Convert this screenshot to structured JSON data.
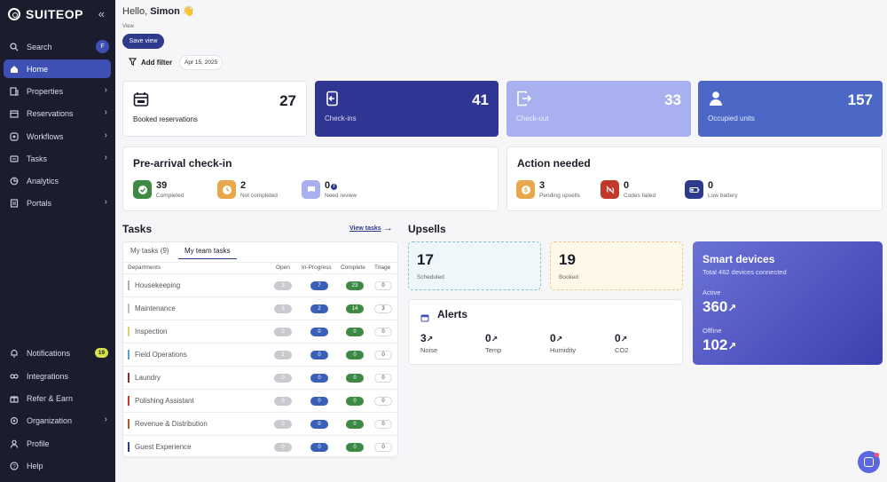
{
  "brand": {
    "name": "SUITEOP"
  },
  "sidebar": {
    "items": [
      {
        "label": "Search",
        "icon": "search-icon",
        "badge": "F"
      },
      {
        "label": "Home",
        "icon": "home-icon",
        "active": true
      },
      {
        "label": "Properties",
        "icon": "building-icon",
        "chevron": true
      },
      {
        "label": "Reservations",
        "icon": "calendar-icon",
        "chevron": true
      },
      {
        "label": "Workflows",
        "icon": "workflow-icon",
        "chevron": true
      },
      {
        "label": "Tasks",
        "icon": "tasks-icon",
        "chevron": true
      },
      {
        "label": "Analytics",
        "icon": "analytics-icon"
      },
      {
        "label": "Portals",
        "icon": "portal-icon",
        "chevron": true
      }
    ],
    "bottom_items": [
      {
        "label": "Notifications",
        "icon": "bell-icon",
        "badge": "19"
      },
      {
        "label": "Integrations",
        "icon": "integrations-icon"
      },
      {
        "label": "Refer & Earn",
        "icon": "gift-icon"
      },
      {
        "label": "Organization",
        "icon": "organization-icon",
        "chevron": true
      },
      {
        "label": "Profile",
        "icon": "user-icon"
      },
      {
        "label": "Help",
        "icon": "help-icon"
      }
    ]
  },
  "header": {
    "greeting_prefix": "Hello,",
    "user_name": "Simon",
    "wave": "👋",
    "view_label": "View",
    "save_view": "Save view",
    "add_filter": "Add filter",
    "date": "Apr 15, 2025"
  },
  "stats": [
    {
      "label": "Booked reservations",
      "value": "27",
      "icon": "calendar-icon"
    },
    {
      "label": "Check-ins",
      "value": "41",
      "icon": "check-in-icon"
    },
    {
      "label": "Check-out",
      "value": "33",
      "icon": "check-out-icon"
    },
    {
      "label": "Occupied units",
      "value": "157",
      "icon": "person-icon"
    }
  ],
  "pre_arrival": {
    "title": "Pre-arrival check-in",
    "metrics": [
      {
        "value": "39",
        "label": "Completed",
        "color": "#3e8a45"
      },
      {
        "value": "2",
        "label": "Not completed",
        "color": "#e7a74a"
      },
      {
        "value": "0",
        "label": "Need review",
        "color": "#a9b0f0"
      }
    ]
  },
  "action_needed": {
    "title": "Action needed",
    "metrics": [
      {
        "value": "3",
        "label": "Pending upsells",
        "color": "#e7a74a"
      },
      {
        "value": "0",
        "label": "Codes failed",
        "color": "#c0392b"
      },
      {
        "value": "0",
        "label": "Low battery",
        "color": "#2e3a8c"
      }
    ]
  },
  "tasks": {
    "title": "Tasks",
    "view_tasks": "View tasks",
    "tabs": [
      "My tasks (9)",
      "My team tasks"
    ],
    "columns": [
      "Departments",
      "Open",
      "In-Progress",
      "Complete",
      "Triage"
    ],
    "rows": [
      {
        "dept": "Housekeeping",
        "open": "3",
        "progress": "7",
        "complete": "23",
        "triage": "0",
        "color": "#b0b0b8"
      },
      {
        "dept": "Maintenance",
        "open": "3",
        "progress": "2",
        "complete": "14",
        "triage": "3",
        "color": "#b8c0c8"
      },
      {
        "dept": "Inspection",
        "open": "0",
        "progress": "0",
        "complete": "0",
        "triage": "0",
        "color": "#e0d070"
      },
      {
        "dept": "Field Operations",
        "open": "1",
        "progress": "0",
        "complete": "0",
        "triage": "0",
        "color": "#5aa0d8"
      },
      {
        "dept": "Laundry",
        "open": "0",
        "progress": "0",
        "complete": "0",
        "triage": "0",
        "color": "#8a2c2c"
      },
      {
        "dept": "Polishing Assistant",
        "open": "0",
        "progress": "0",
        "complete": "0",
        "triage": "0",
        "color": "#c0392b"
      },
      {
        "dept": "Revenue & Distribution",
        "open": "0",
        "progress": "0",
        "complete": "0",
        "triage": "0",
        "color": "#b0542c"
      },
      {
        "dept": "Guest Experience",
        "open": "0",
        "progress": "0",
        "complete": "0",
        "triage": "0",
        "color": "#2e3a8c"
      }
    ]
  },
  "upsells": {
    "title": "Upsells",
    "cards": [
      {
        "value": "17",
        "label": "Scheduled"
      },
      {
        "value": "19",
        "label": "Booked"
      }
    ]
  },
  "alerts": {
    "title": "Alerts",
    "items": [
      {
        "value": "3",
        "label": "Noise"
      },
      {
        "value": "0",
        "label": "Temp"
      },
      {
        "value": "0",
        "label": "Humidity"
      },
      {
        "value": "0",
        "label": "CO2"
      }
    ]
  },
  "smart_devices": {
    "title": "Smart devices",
    "subtitle": "Total 462 devices connected",
    "active_label": "Active",
    "active_value": "360",
    "offline_label": "Offline",
    "offline_value": "102"
  },
  "arrow": "↗"
}
